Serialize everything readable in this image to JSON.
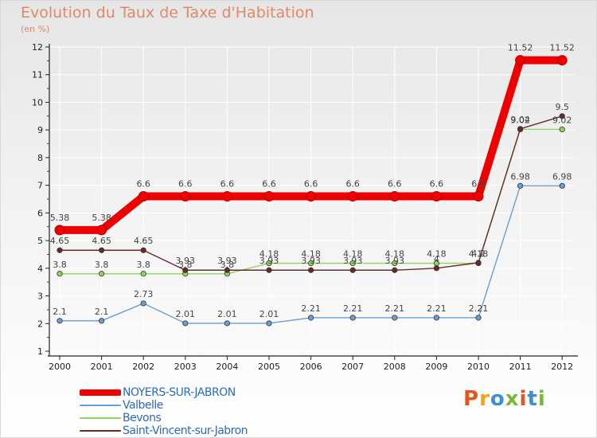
{
  "chart_data": {
    "type": "line",
    "title": "Evolution du Taux de Taxe d'Habitation",
    "subtitle": "(en %)",
    "xlabel": "",
    "ylabel": "(en %)",
    "x": [
      "2000",
      "2001",
      "2002",
      "2003",
      "2004",
      "2005",
      "2006",
      "2007",
      "2008",
      "2009",
      "2010",
      "2011",
      "2012"
    ],
    "yticks": [
      1,
      2,
      3,
      4,
      5,
      6,
      7,
      8,
      9,
      10,
      11,
      12
    ],
    "ylim": [
      1,
      12
    ],
    "grid": true,
    "series": [
      {
        "name": "NOYERS-SUR-JABRON",
        "color": "#ee0000",
        "values": [
          5.38,
          5.38,
          6.6,
          6.6,
          6.6,
          6.6,
          6.6,
          6.6,
          6.6,
          6.6,
          6.6,
          11.52,
          11.52
        ],
        "labels": [
          "5.38",
          "5.38",
          "6.6",
          "6.6",
          "6.6",
          "6.6",
          "6.6",
          "6.6",
          "6.6",
          "6.6",
          "6.6",
          "11.52",
          "11.52"
        ]
      },
      {
        "name": "Valbelle",
        "color": "#6a9fd1",
        "values": [
          2.1,
          2.1,
          2.73,
          2.01,
          2.01,
          2.01,
          2.21,
          2.21,
          2.21,
          2.21,
          2.21,
          6.98,
          6.98
        ],
        "labels": [
          "2.1",
          "2.1",
          "2.73",
          "2.01",
          "2.01",
          "2.01",
          "2.21",
          "2.21",
          "2.21",
          "2.21",
          "2.21",
          "6.98",
          "6.98"
        ]
      },
      {
        "name": "Bevons",
        "color": "#8fd65a",
        "values": [
          3.8,
          3.8,
          3.8,
          3.8,
          3.8,
          4.18,
          4.18,
          4.18,
          4.18,
          4.18,
          4.18,
          9.02,
          9.02
        ],
        "labels": [
          "3.8",
          "3.8",
          "3.8",
          "3.8",
          "3.8",
          "4.18",
          "4.18",
          "4.18",
          "4.18",
          "4.18",
          "4.18",
          "9.02",
          "9.02"
        ]
      },
      {
        "name": "Saint-Vincent-sur-Jabron",
        "color": "#6b2a2a",
        "values": [
          4.65,
          4.65,
          4.65,
          3.93,
          3.93,
          3.93,
          3.93,
          3.93,
          3.93,
          4.0,
          4.2,
          9.04,
          9.5
        ],
        "labels": [
          "4.65",
          "4.65",
          "4.65",
          "3.93",
          "3.93",
          "3.93",
          "3.93",
          "3.93",
          "3.93",
          "4",
          "4.2",
          "9.04",
          "9.5"
        ]
      }
    ],
    "legend": "bottom-left"
  },
  "brand": {
    "letters": [
      "P",
      "r",
      "o",
      "x",
      "i",
      "t",
      "i"
    ],
    "colors": [
      "#e8541e",
      "#f2a31b",
      "#3a8fd8",
      "#7ab83a",
      "#e8541e",
      "#3a8fd8",
      "#7ab83a"
    ]
  }
}
